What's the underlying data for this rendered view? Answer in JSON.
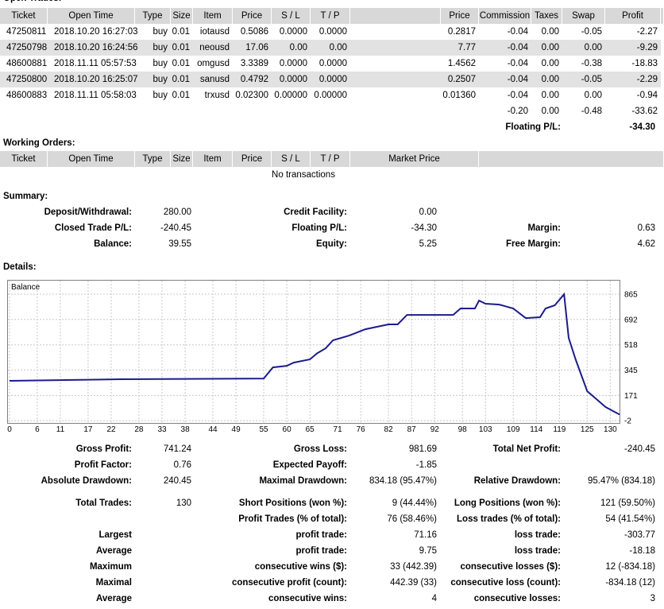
{
  "open_trades": {
    "title": "Open Trades:",
    "header": [
      "Ticket",
      "Open Time",
      "Type",
      "Size",
      "Item",
      "Price",
      "S / L",
      "T / P",
      "Price",
      "Commission",
      "Taxes",
      "Swap",
      "Profit"
    ],
    "rows": [
      [
        "47250811",
        "2018.10.20 16:27:03",
        "buy",
        "0.01",
        "iotausd",
        "0.5086",
        "0.0000",
        "0.0000",
        "0.2817",
        "-0.04",
        "0.00",
        "-0.05",
        "-2.27"
      ],
      [
        "47250798",
        "2018.10.20 16:24:56",
        "buy",
        "0.01",
        "neousd",
        "17.06",
        "0.00",
        "0.00",
        "7.77",
        "-0.04",
        "0.00",
        "0.00",
        "-9.29"
      ],
      [
        "48600881",
        "2018.11.11 05:57:53",
        "buy",
        "0.01",
        "omgusd",
        "3.3389",
        "0.0000",
        "0.0000",
        "1.4562",
        "-0.04",
        "0.00",
        "-0.38",
        "-18.83"
      ],
      [
        "47250800",
        "2018.10.20 16:25:07",
        "buy",
        "0.01",
        "sanusd",
        "0.4792",
        "0.0000",
        "0.0000",
        "0.2507",
        "-0.04",
        "0.00",
        "-0.05",
        "-2.29"
      ],
      [
        "48600883",
        "2018.11.11 05:58:03",
        "buy",
        "0.01",
        "trxusd",
        "0.02300",
        "0.00000",
        "0.00000",
        "0.01360",
        "-0.04",
        "0.00",
        "0.00",
        "-0.94"
      ]
    ],
    "totals": [
      "-0.20",
      "0.00",
      "-0.48",
      "-33.62"
    ],
    "floating": {
      "label": "Floating P/L:",
      "value": "-34.30"
    }
  },
  "working_orders": {
    "title": "Working Orders:",
    "header": [
      "Ticket",
      "Open Time",
      "Type",
      "Size",
      "Item",
      "Price",
      "S / L",
      "T / P",
      "Market Price"
    ],
    "empty": "No transactions"
  },
  "summary": {
    "title": "Summary:",
    "rows": [
      [
        {
          "label": "Deposit/Withdrawal:",
          "value": "280.00"
        },
        {
          "label": "Credit Facility:",
          "value": "0.00"
        },
        null
      ],
      [
        {
          "label": "Closed Trade P/L:",
          "value": "-240.45"
        },
        {
          "label": "Floating P/L:",
          "value": "-34.30"
        },
        {
          "label": "Margin:",
          "value": "0.63"
        }
      ],
      [
        {
          "label": "Balance:",
          "value": "39.55"
        },
        {
          "label": "Equity:",
          "value": "5.25"
        },
        {
          "label": "Free Margin:",
          "value": "4.62"
        }
      ]
    ]
  },
  "details": {
    "title": "Details:",
    "chart": {
      "type": "line",
      "label": "Balance",
      "color": "#1c1c8a",
      "xlim": [
        0,
        132
      ],
      "ylim": [
        -18,
        958
      ],
      "xticks": [
        0,
        6,
        11,
        17,
        22,
        28,
        33,
        38,
        44,
        49,
        55,
        60,
        65,
        71,
        76,
        82,
        87,
        92,
        98,
        103,
        109,
        114,
        119,
        125,
        130
      ],
      "yticks": [
        -2,
        171,
        345,
        518,
        692,
        865
      ],
      "grid": true,
      "x": [
        0,
        24,
        55,
        57,
        60,
        61.5,
        65,
        66.6,
        68.4,
        70,
        73.5,
        77,
        82,
        84,
        86,
        96,
        97.6,
        100.7,
        101.6,
        103,
        106,
        109,
        111.7,
        114.8,
        116,
        118,
        120,
        121,
        122.5,
        125,
        129,
        132
      ],
      "values": [
        271,
        282,
        287,
        363,
        374,
        396,
        418,
        461,
        494,
        549,
        581,
        625,
        658,
        658,
        723,
        723,
        767,
        767,
        821,
        800,
        794,
        767,
        701,
        707,
        767,
        789,
        865,
        565,
        418,
        200,
        91,
        40
      ]
    },
    "stats": [
      [
        {
          "label": "Gross Profit:",
          "value": "741.24"
        },
        {
          "label": "Gross Loss:",
          "value": "981.69"
        },
        {
          "label": "Total Net Profit:",
          "value": "-240.45"
        }
      ],
      [
        {
          "label": "Profit Factor:",
          "value": "0.76"
        },
        {
          "label": "Expected Payoff:",
          "value": "-1.85"
        },
        null
      ],
      [
        {
          "label": "Absolute Drawdown:",
          "value": "240.45"
        },
        {
          "label": "Maximal Drawdown:",
          "value": "834.18 (95.47%)"
        },
        {
          "label": "Relative Drawdown:",
          "value": "95.47% (834.18)"
        }
      ],
      [
        {
          "label": "Total Trades:",
          "value": "130"
        },
        {
          "label": "Short Positions (won %):",
          "value": "9 (44.44%)"
        },
        {
          "label": "Long Positions (won %):",
          "value": "121 (59.50%)"
        }
      ],
      [
        null,
        {
          "label": "Profit Trades (% of total):",
          "value": "76 (58.46%)"
        },
        {
          "label": "Loss trades (% of total):",
          "value": "54 (41.54%)"
        }
      ],
      [
        {
          "label": "Largest"
        },
        {
          "label": "profit trade:",
          "value": "71.16"
        },
        {
          "label": "loss trade:",
          "value": "-303.77"
        }
      ],
      [
        {
          "label": "Average"
        },
        {
          "label": "profit trade:",
          "value": "9.75"
        },
        {
          "label": "loss trade:",
          "value": "-18.18"
        }
      ],
      [
        {
          "label": "Maximum"
        },
        {
          "label": "consecutive wins ($):",
          "value": "33 (442.39)"
        },
        {
          "label": "consecutive losses ($):",
          "value": "12 (-834.18)"
        }
      ],
      [
        {
          "label": "Maximal"
        },
        {
          "label": "consecutive profit (count):",
          "value": "442.39 (33)"
        },
        {
          "label": "consecutive loss (count):",
          "value": "-834.18 (12)"
        }
      ],
      [
        {
          "label": "Average"
        },
        {
          "label": "consecutive wins:",
          "value": "4"
        },
        {
          "label": "consecutive losses:",
          "value": "3"
        }
      ]
    ]
  }
}
